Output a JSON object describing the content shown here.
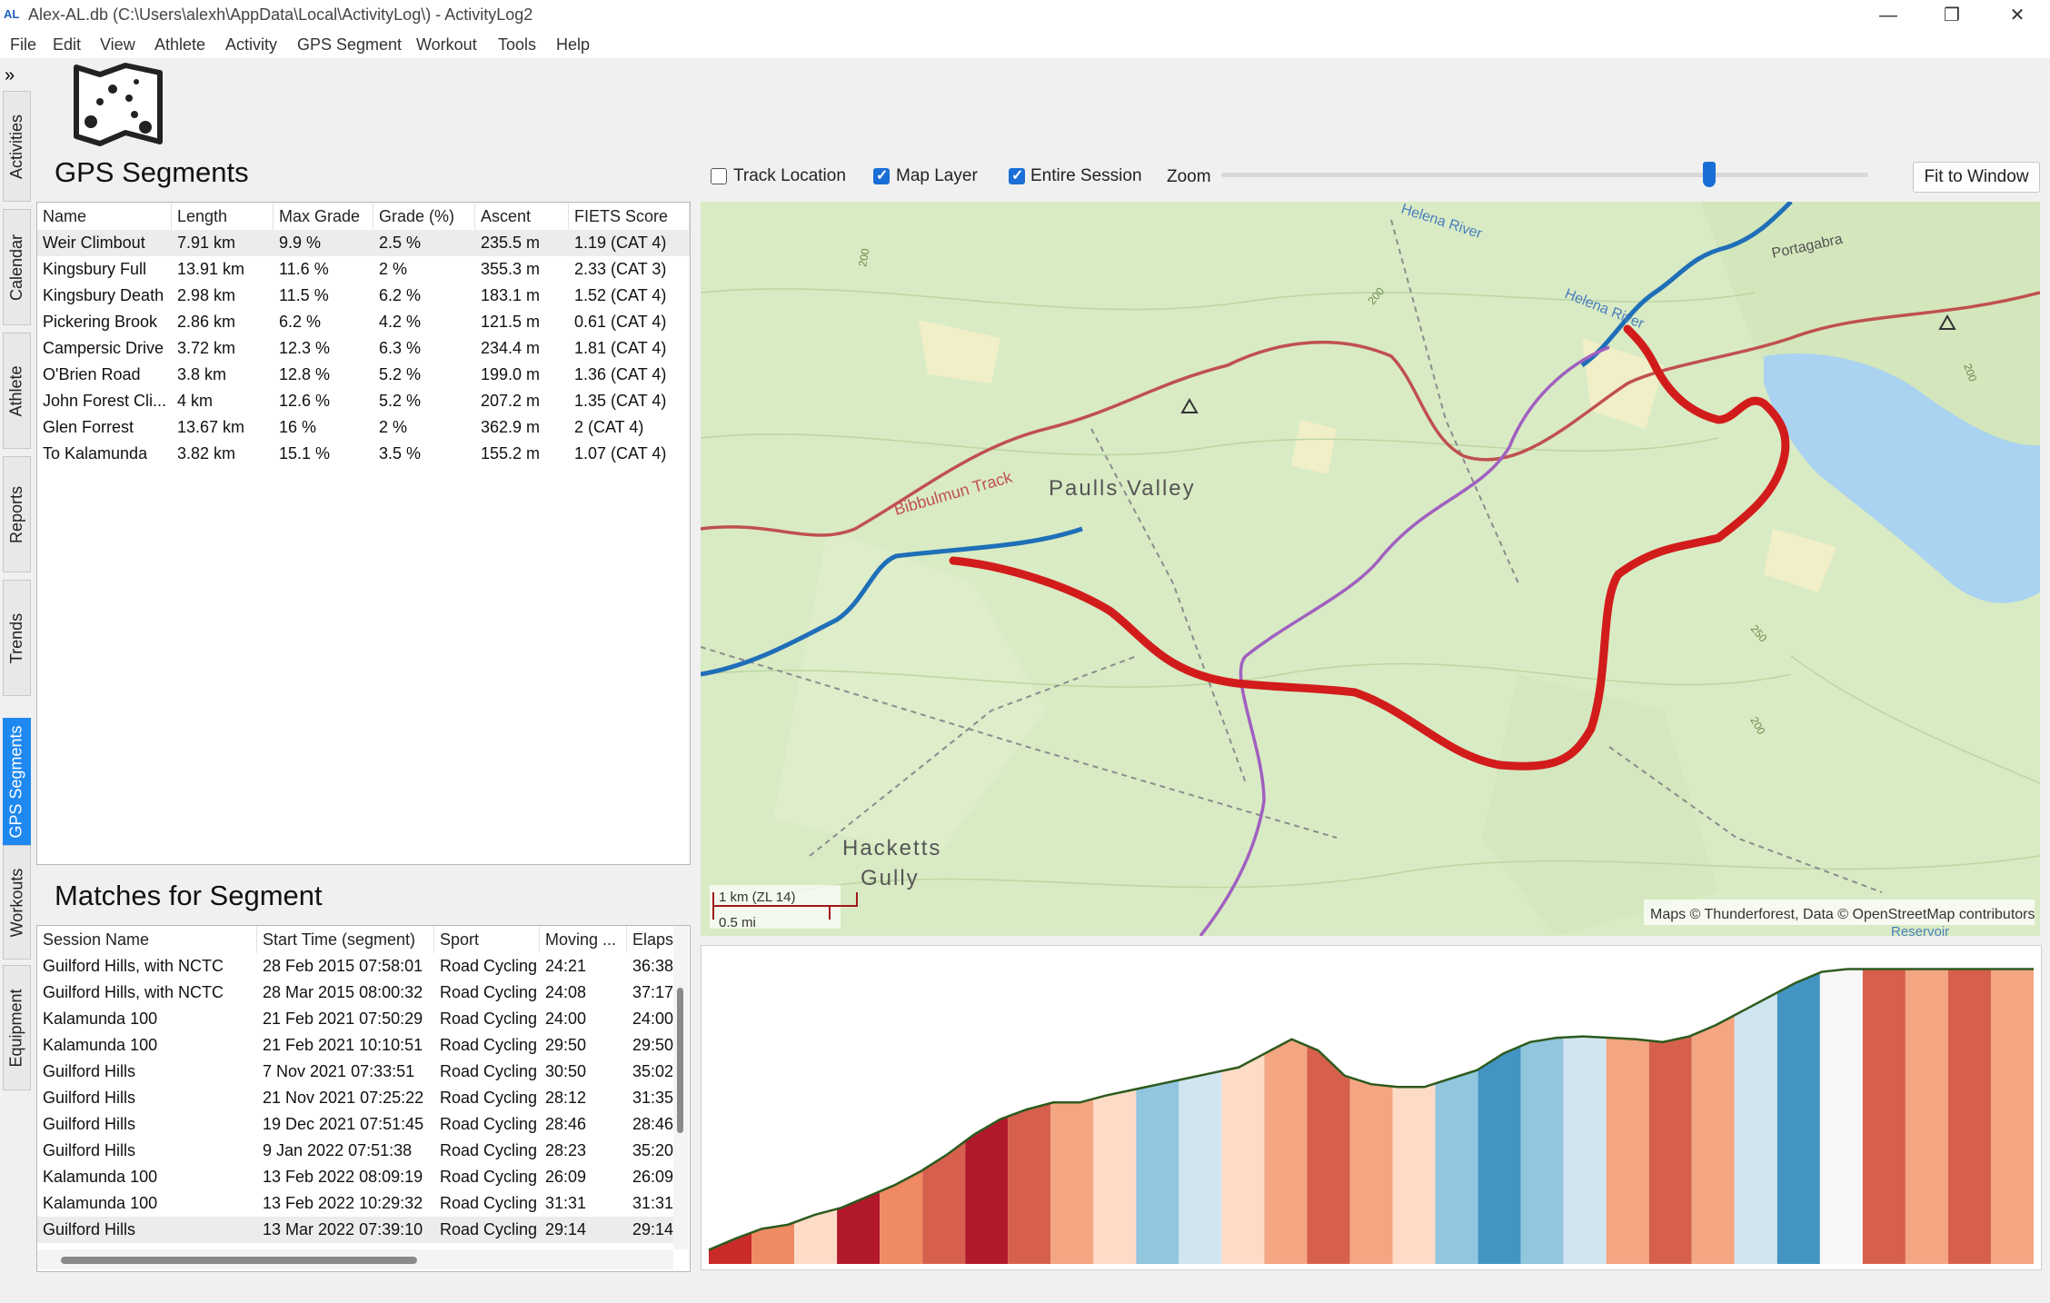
{
  "window": {
    "title": "Alex-AL.db (C:\\Users\\alexh\\AppData\\Local\\ActivityLog\\) - ActivityLog2",
    "app_icon_text": "AL",
    "minimize_glyph": "—",
    "restore_glyph": "❐",
    "close_glyph": "✕"
  },
  "menu": [
    "File",
    "Edit",
    "View",
    "Athlete",
    "Activity",
    "GPS Segment",
    "Workout",
    "Tools",
    "Help"
  ],
  "sidebar": {
    "expand_glyph": "»",
    "tabs": [
      "Activities",
      "Calendar",
      "Athlete",
      "Reports",
      "Trends",
      "GPS Segments",
      "Workouts",
      "Equipment"
    ],
    "active": "GPS Segments"
  },
  "segments": {
    "title": "GPS Segments",
    "columns": [
      "Name",
      "Length",
      "Max Grade",
      "Grade (%)",
      "Ascent",
      "FIETS Score"
    ],
    "rows": [
      [
        "Weir Climbout",
        "7.91 km",
        "9.9 %",
        "2.5 %",
        "235.5 m",
        "1.19 (CAT 4)"
      ],
      [
        "Kingsbury Full",
        "13.91 km",
        "11.6 %",
        "2 %",
        "355.3 m",
        "2.33 (CAT 3)"
      ],
      [
        "Kingsbury Death",
        "2.98 km",
        "11.5 %",
        "6.2 %",
        "183.1 m",
        "1.52 (CAT 4)"
      ],
      [
        "Pickering Brook",
        "2.86 km",
        "6.2 %",
        "4.2 %",
        "121.5 m",
        "0.61 (CAT 4)"
      ],
      [
        "Campersic Drive",
        "3.72 km",
        "12.3 %",
        "6.3 %",
        "234.4 m",
        "1.81 (CAT 4)"
      ],
      [
        "O'Brien Road",
        "3.8 km",
        "12.8 %",
        "5.2 %",
        "199.0 m",
        "1.36 (CAT 4)"
      ],
      [
        "John Forest Cli...",
        "4 km",
        "12.6 %",
        "5.2 %",
        "207.2 m",
        "1.35 (CAT 4)"
      ],
      [
        "Glen Forrest",
        "13.67 km",
        "16 %",
        "2 %",
        "362.9 m",
        "2 (CAT 4)"
      ],
      [
        "To Kalamunda",
        "3.82 km",
        "15.1 %",
        "3.5 %",
        "155.2 m",
        "1.07 (CAT 4)"
      ]
    ]
  },
  "matches": {
    "title": "Matches for Segment",
    "columns": [
      "Session Name",
      "Start Time (segment)",
      "Sport",
      "Moving ...",
      "Elaps"
    ],
    "rows": [
      [
        "Guilford Hills, with NCTC",
        "28 Feb 2015 07:58:01",
        "Road Cycling",
        "24:21",
        "36:38"
      ],
      [
        "Guilford Hills, with NCTC",
        "28 Mar 2015 08:00:32",
        "Road Cycling",
        "24:08",
        "37:17"
      ],
      [
        "Kalamunda 100",
        "21 Feb 2021 07:50:29",
        "Road Cycling",
        "24:00",
        "24:00"
      ],
      [
        "Kalamunda 100",
        "21 Feb 2021 10:10:51",
        "Road Cycling",
        "29:50",
        "29:50"
      ],
      [
        "Guilford Hills",
        "7 Nov 2021 07:33:51",
        "Road Cycling",
        "30:50",
        "35:02"
      ],
      [
        "Guilford Hills",
        "21 Nov 2021 07:25:22",
        "Road Cycling",
        "28:12",
        "31:35"
      ],
      [
        "Guilford Hills",
        "19 Dec 2021 07:51:45",
        "Road Cycling",
        "28:46",
        "28:46"
      ],
      [
        "Guilford Hills",
        "9 Jan 2022 07:51:38",
        "Road Cycling",
        "28:23",
        "35:20"
      ],
      [
        "Kalamunda 100",
        "13 Feb 2022 08:09:19",
        "Road Cycling",
        "26:09",
        "26:09"
      ],
      [
        "Kalamunda 100",
        "13 Feb 2022 10:29:32",
        "Road Cycling",
        "31:31",
        "31:31"
      ],
      [
        "Guilford Hills",
        "13 Mar 2022 07:39:10",
        "Road Cycling",
        "29:14",
        "29:14"
      ]
    ]
  },
  "map_toolbar": {
    "track_location": {
      "label": "Track Location",
      "checked": false
    },
    "map_layer": {
      "label": "Map Layer",
      "checked": true
    },
    "entire_session": {
      "label": "Entire Session",
      "checked": true
    },
    "zoom_label": "Zoom",
    "zoom_level": 0.76,
    "fit_button": "Fit to Window"
  },
  "map": {
    "labels": {
      "pauls_valley": "Paulls Valley",
      "bibbulmun": "Bibbulmun Track",
      "helena_river_1": "Helena River",
      "helena_river_2": "Helena River",
      "hacketts": "Hacketts",
      "gully": "Gully",
      "portagabra": "Portagabra",
      "reservoir": "Reservoir",
      "contour_a": "200",
      "contour_b": "200",
      "contour_c": "250",
      "contour_d": "200",
      "contour_e": "200"
    },
    "scale_km": "1 km  (ZL 14)",
    "scale_mi": "0.5 mi",
    "attribution": "Maps © Thunderforest, Data © OpenStreetMap contributors",
    "colors": {
      "land": "#d9ebc4",
      "water": "#a9d3f0",
      "segment": "#d21c1c",
      "session": "#1f6fb8",
      "track": "#c05050",
      "purple": "#a060c0"
    }
  },
  "chart_data": {
    "type": "area",
    "title": "",
    "xlabel": "",
    "ylabel": "",
    "x": [
      0,
      2,
      4,
      6,
      8,
      10,
      12,
      14,
      16,
      18,
      20,
      22,
      24,
      26,
      28,
      30,
      32,
      34,
      36,
      38,
      40,
      42,
      44,
      46,
      48,
      50,
      52,
      54,
      56,
      58,
      60,
      62,
      64,
      66,
      68,
      70,
      72,
      74,
      76,
      78,
      80,
      82,
      84,
      86,
      88,
      90,
      92,
      94,
      96,
      98,
      100
    ],
    "y": [
      10,
      18,
      25,
      28,
      35,
      40,
      48,
      56,
      66,
      78,
      92,
      103,
      110,
      115,
      115,
      120,
      124,
      128,
      132,
      136,
      140,
      150,
      160,
      152,
      134,
      128,
      126,
      126,
      132,
      138,
      150,
      158,
      161,
      162,
      161,
      160,
      158,
      162,
      170,
      180,
      190,
      200,
      208,
      210,
      210,
      210,
      210,
      210,
      210,
      210,
      210
    ],
    "grade_colors": [
      "#c92a2a",
      "#ef8a62",
      "#fddbc7",
      "#b2182b",
      "#ef8a62",
      "#d6604d",
      "#b2182b",
      "#d6604d",
      "#f4a582",
      "#fddbc7",
      "#92c5de",
      "#d1e5f0",
      "#fddbc7",
      "#f4a582",
      "#d6604d",
      "#f4a582",
      "#fddbc7",
      "#92c5de",
      "#4393c3",
      "#92c5de",
      "#d1e5f0",
      "#f4a582",
      "#d6604d",
      "#f4a582",
      "#d1e5f0",
      "#4393c3",
      "#f7f7f7",
      "#d6604d",
      "#f4a582",
      "#d6604d",
      "#f4a582"
    ],
    "ylim": [
      0,
      220
    ]
  }
}
